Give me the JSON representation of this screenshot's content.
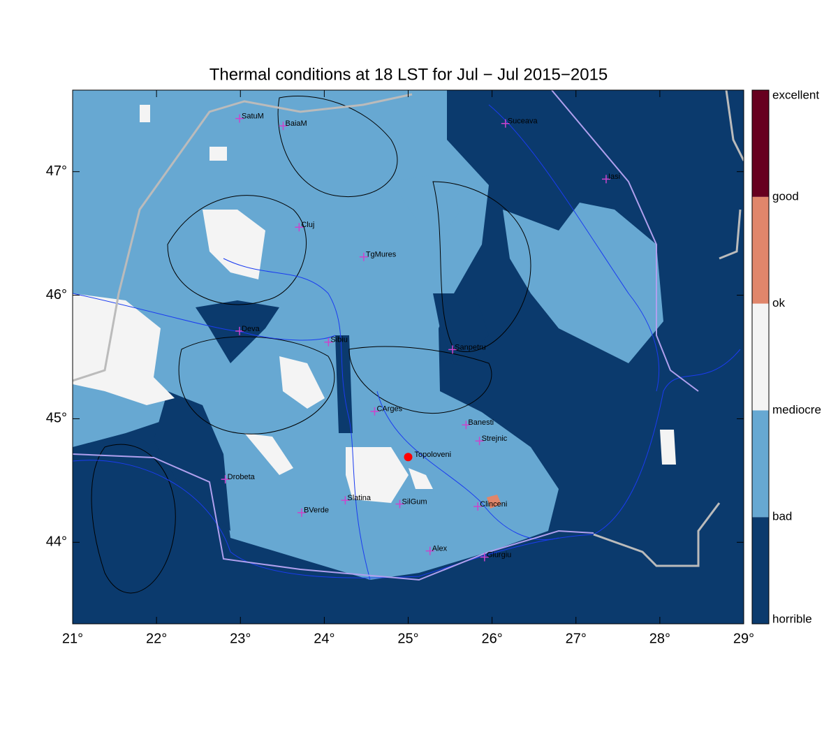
{
  "chart_data": {
    "type": "map",
    "title": "Thermal conditions at 18 LST for Jul − Jul  2015−2015",
    "xlim": [
      21,
      29
    ],
    "ylim": [
      43.34,
      47.66
    ],
    "xticks": [
      {
        "value": 21,
        "label": "21°"
      },
      {
        "value": 22,
        "label": "22°"
      },
      {
        "value": 23,
        "label": "23°"
      },
      {
        "value": 24,
        "label": "24°"
      },
      {
        "value": 25,
        "label": "25°"
      },
      {
        "value": 26,
        "label": "26°"
      },
      {
        "value": 27,
        "label": "27°"
      },
      {
        "value": 28,
        "label": "28°"
      },
      {
        "value": 29,
        "label": "29°"
      }
    ],
    "yticks": [
      {
        "value": 44,
        "label": "44°"
      },
      {
        "value": 45,
        "label": "45°"
      },
      {
        "value": 46,
        "label": "46°"
      },
      {
        "value": 47,
        "label": "47°"
      }
    ],
    "colorbar": {
      "labels": [
        "horrible",
        "bad",
        "mediocre",
        "ok",
        "good",
        "excellent"
      ],
      "colors": [
        "#0b3a6d",
        "#67a8d2",
        "#f4f4f4",
        "#e0866b",
        "#67001f"
      ]
    },
    "cities": [
      {
        "name": "SatuM",
        "lon": 22.99,
        "lat": 47.43
      },
      {
        "name": "BaiaM",
        "lon": 23.51,
        "lat": 47.37
      },
      {
        "name": "Suceava",
        "lon": 26.16,
        "lat": 47.39
      },
      {
        "name": "Iasi",
        "lon": 27.36,
        "lat": 46.94
      },
      {
        "name": "Cluj",
        "lon": 23.7,
        "lat": 46.55
      },
      {
        "name": "TgMures",
        "lon": 24.47,
        "lat": 46.31
      },
      {
        "name": "Deva",
        "lon": 22.99,
        "lat": 45.71
      },
      {
        "name": "Sibiu",
        "lon": 24.05,
        "lat": 45.62
      },
      {
        "name": "Sanpetru",
        "lon": 25.53,
        "lat": 45.56
      },
      {
        "name": "CArges",
        "lon": 24.6,
        "lat": 45.06
      },
      {
        "name": "Banesti",
        "lon": 25.69,
        "lat": 44.95
      },
      {
        "name": "Strejnic",
        "lon": 25.85,
        "lat": 44.82
      },
      {
        "name": "Drobeta",
        "lon": 22.82,
        "lat": 44.51
      },
      {
        "name": "Slatina",
        "lon": 24.25,
        "lat": 44.34
      },
      {
        "name": "SilGum",
        "lon": 24.9,
        "lat": 44.31
      },
      {
        "name": "BVerde",
        "lon": 23.73,
        "lat": 44.24
      },
      {
        "name": "Clinceni",
        "lon": 25.83,
        "lat": 44.29
      },
      {
        "name": "Alex",
        "lon": 25.26,
        "lat": 43.93
      },
      {
        "name": "Giurgiu",
        "lon": 25.91,
        "lat": 43.88
      }
    ],
    "site": {
      "name": "Topoloveni",
      "lon": 25.0,
      "lat": 44.69,
      "color": "#ff0000"
    },
    "city_color": "#cc44cc"
  }
}
